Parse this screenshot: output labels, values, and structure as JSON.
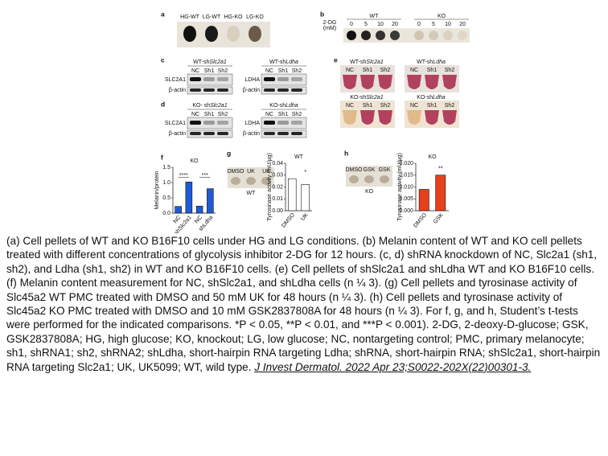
{
  "panels": {
    "a": {
      "label": "a",
      "tubes": [
        "HG-WT",
        "LG-WT",
        "HG-KO",
        "LG-KO"
      ]
    },
    "b": {
      "label": "b",
      "treatment": "2-DG",
      "unit": "(mM)",
      "groups": [
        "WT",
        "KO"
      ],
      "doses": [
        0,
        5,
        10,
        20
      ]
    },
    "c": {
      "label": "c",
      "groups": [
        {
          "title": "WT-sh",
          "gene": "Slc2a1",
          "lanes": [
            "NC",
            "Sh1",
            "Sh2"
          ],
          "target": "SLC2A1",
          "control": "β-actin"
        },
        {
          "title": "WT-sh",
          "gene": "Ldha",
          "lanes": [
            "NC",
            "Sh1",
            "Sh2"
          ],
          "target": "LDHA",
          "control": "β-actin"
        }
      ]
    },
    "d": {
      "label": "d",
      "groups": [
        {
          "title": "KO- sh",
          "gene": "Slc2a1",
          "lanes": [
            "NC",
            "Sh1",
            "Sh2"
          ],
          "target": "SLC2A1",
          "control": "β-actin"
        },
        {
          "title": "KO-sh",
          "gene": "Ldha",
          "lanes": [
            "NC",
            "Sh1",
            "Sh2"
          ],
          "target": "LDHA",
          "control": "β-actin"
        }
      ]
    },
    "e": {
      "label": "e",
      "groups": [
        {
          "title": "WT-sh",
          "gene": "Slc2a1",
          "lanes": [
            "NC",
            "Sh1",
            "Sh2"
          ]
        },
        {
          "title": "WT-sh",
          "gene": "Ldha",
          "lanes": [
            "NC",
            "Sh1",
            "Sh2"
          ]
        },
        {
          "title": "KO-sh",
          "gene": "Slc2a1",
          "lanes": [
            "NC",
            "Sh1",
            "Sh2"
          ]
        },
        {
          "title": "KO-sh",
          "gene": "Ldha",
          "lanes": [
            "NC",
            "Sh1",
            "Sh2"
          ]
        }
      ]
    },
    "f": {
      "label": "f",
      "chart": {
        "type": "bar",
        "title": "KO",
        "ylabel": "Melanin/protein",
        "categories": [
          "NC",
          "shSlc2a1",
          "NC",
          "shLdha"
        ],
        "values": [
          0.22,
          1.02,
          0.23,
          0.8
        ],
        "color": "#1f5bd6",
        "ylim": [
          0,
          1.5
        ],
        "yticks": [
          {
            "value": 0,
            "label": "0.0"
          },
          0.5,
          {
            "value": 1,
            "label": "1.0"
          },
          1.5
        ],
        "significance": [
          "****",
          "***"
        ]
      }
    },
    "g": {
      "label": "g",
      "photo_labels": [
        "DMSO",
        "UK",
        "UK"
      ],
      "photo_caption": "WT",
      "chart": {
        "type": "bar",
        "title": "WT",
        "ylabel": "Tyrosinase activity (mU/μg)",
        "categories": [
          "DMSO",
          "UK"
        ],
        "values": [
          0.027,
          0.022
        ],
        "color": "#ffffff",
        "ylim": [
          0,
          0.04
        ],
        "yticks": [
          {
            "value": 0,
            "label": "0.00"
          },
          0.01,
          0.02,
          0.03,
          {
            "value": 0.04,
            "label": "0.04"
          }
        ],
        "significance": [
          "*"
        ]
      }
    },
    "h": {
      "label": "h",
      "photo_labels": [
        "DMSO",
        "GSK",
        "GSK"
      ],
      "photo_caption": "KO",
      "chart": {
        "type": "bar",
        "title": "KO",
        "ylabel": "Tyrosinase activity (mU/μg)",
        "categories": [
          "DMSO",
          "GSK"
        ],
        "values": [
          0.009,
          0.015
        ],
        "color": "#e8401c",
        "ylim": [
          0,
          0.02
        ],
        "yticks": [
          {
            "value": 0,
            "label": "0.000"
          },
          0.005,
          {
            "value": 0.01,
            "label": "0.010"
          },
          0.015,
          {
            "value": 0.02,
            "label": "0.020"
          }
        ],
        "significance": [
          "**"
        ]
      }
    }
  },
  "caption": {
    "text": "(a) Cell pellets of WT and KO B16F10 cells under HG and LG conditions. (b) Melanin content of WT and KO cell pellets treated with different concentrations of glycolysis inhibitor 2-DG for 12 hours. (c, d) shRNA knockdown of NC, Slc2a1 (sh1, sh2), and Ldha (sh1, sh2) in WT and KO B16F10 cells. (e) Cell pellets of shSlc2a1 and shLdha WT and KO B16F10 cells. (f) Melanin content measurement for NC, shSlc2a1, and shLdha cells (n ¼ 3). (g) Cell pellets and tyrosinase activity of Slc45a2 WT PMC treated with DMSO and 50 mM UK for 48 hours (n ¼ 3). (h) Cell pellets and tyrosinase activity of Slc45a2 KO PMC treated with DMSO and 10 mM GSK2837808A for 48 hours (n ¼ 3). For f, g, and h, Student’s t-tests were performed for the indicated comparisons. *P < 0.05, **P < 0.01, and ***P < 0.001). 2-DG, 2-deoxy-D-glucose; GSK, GSK2837808A; HG, high glucose; KO, knockout; LG, low glucose; NC, nontargeting control; PMC, primary melanocyte; sh1, shRNA1; sh2, shRNA2; shLdha, short-hairpin RNA targeting Ldha; shRNA, short-hairpin RNA; shSlc2a1, short-hairpin RNA targeting Slc2a1; UK, UK5099; WT, wild type.",
    "citation": "J Invest Dermatol. 2022 Apr 23;S0022-202X(22)00301-3."
  }
}
